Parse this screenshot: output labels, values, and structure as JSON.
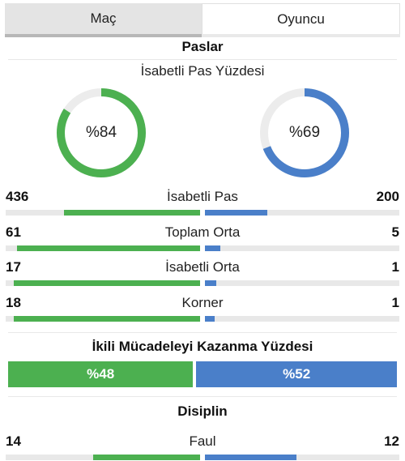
{
  "colors": {
    "home": "#4cb050",
    "away": "#4a7fc9",
    "track": "#e8e8e8"
  },
  "tabs": [
    {
      "label": "Maç",
      "active": true
    },
    {
      "label": "Oyuncu",
      "active": false
    }
  ],
  "passes": {
    "title": "Paslar",
    "accuracy_title": "İsabetli Pas Yüzdesi",
    "home_accuracy": {
      "label": "%84",
      "value": 84
    },
    "away_accuracy": {
      "label": "%69",
      "value": 69
    },
    "stats": [
      {
        "name": "İsabetli Pas",
        "home": "436",
        "away": "200",
        "home_fill": 0.7,
        "away_fill": 0.32
      },
      {
        "name": "Toplam Orta",
        "home": "61",
        "away": "5",
        "home_fill": 0.94,
        "away_fill": 0.08
      },
      {
        "name": "İsabetli Orta",
        "home": "17",
        "away": "1",
        "home_fill": 0.96,
        "away_fill": 0.06
      },
      {
        "name": "Korner",
        "home": "18",
        "away": "1",
        "home_fill": 0.96,
        "away_fill": 0.05
      }
    ]
  },
  "duels": {
    "title": "İkili Mücadeleyi Kazanma Yüzdesi",
    "home": {
      "label": "%48",
      "value": 48
    },
    "away": {
      "label": "%52",
      "value": 52
    }
  },
  "discipline": {
    "title": "Disiplin",
    "stats": [
      {
        "name": "Faul",
        "home": "14",
        "away": "12",
        "home_fill": 0.55,
        "away_fill": 0.47
      }
    ]
  }
}
